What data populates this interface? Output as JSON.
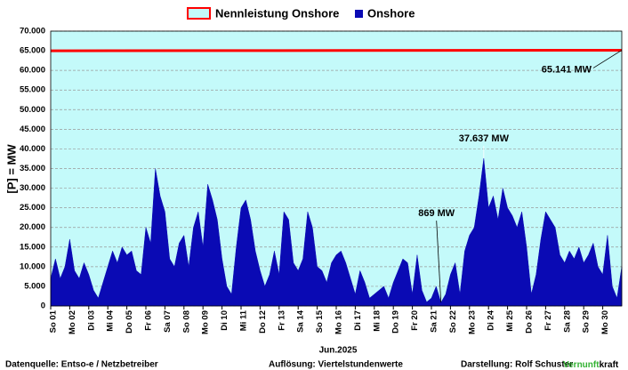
{
  "chart_data": {
    "type": "area",
    "y_label": "[P] = MW",
    "x_label": "Jun.2025",
    "xlim": [
      0,
      30
    ],
    "xticks": [
      {
        "value": 0,
        "label": "So 01"
      },
      {
        "value": 1,
        "label": "Mo 02"
      },
      {
        "value": 2,
        "label": "Di 03"
      },
      {
        "value": 3,
        "label": "Mi 04"
      },
      {
        "value": 4,
        "label": "Do 05"
      },
      {
        "value": 5,
        "label": "Fr 06"
      },
      {
        "value": 6,
        "label": "Sa 07"
      },
      {
        "value": 7,
        "label": "So 08"
      },
      {
        "value": 8,
        "label": "Mo 09"
      },
      {
        "value": 9,
        "label": "Di 10"
      },
      {
        "value": 10,
        "label": "Mi 11"
      },
      {
        "value": 11,
        "label": "Do 12"
      },
      {
        "value": 12,
        "label": "Fr 13"
      },
      {
        "value": 13,
        "label": "Sa 14"
      },
      {
        "value": 14,
        "label": "So 15"
      },
      {
        "value": 15,
        "label": "Mo 16"
      },
      {
        "value": 16,
        "label": "Di 17"
      },
      {
        "value": 17,
        "label": "Mi 18"
      },
      {
        "value": 18,
        "label": "Do 19"
      },
      {
        "value": 19,
        "label": "Fr 20"
      },
      {
        "value": 20,
        "label": "Sa 21"
      },
      {
        "value": 21,
        "label": "So 22"
      },
      {
        "value": 22,
        "label": "Mo 23"
      },
      {
        "value": 23,
        "label": "Di 24"
      },
      {
        "value": 24,
        "label": "Mi 25"
      },
      {
        "value": 25,
        "label": "Do 26"
      },
      {
        "value": 26,
        "label": "Fr 27"
      },
      {
        "value": 27,
        "label": "Sa 28"
      },
      {
        "value": 28,
        "label": "So 29"
      },
      {
        "value": 29,
        "label": "Mo 30"
      }
    ],
    "ylim": [
      0,
      70000
    ],
    "yticks": [
      0,
      {
        "value": 5000,
        "label": "5.000"
      },
      {
        "value": 10000,
        "label": "10.000"
      },
      {
        "value": 15000,
        "label": "15.000"
      },
      {
        "value": 20000,
        "label": "20.000"
      },
      {
        "value": 25000,
        "label": "25.000"
      },
      {
        "value": 30000,
        "label": "30.000"
      },
      {
        "value": 35000,
        "label": "35.000"
      },
      {
        "value": 40000,
        "label": "40.000"
      },
      {
        "value": 45000,
        "label": "45.000"
      },
      {
        "value": 50000,
        "label": "50.000"
      },
      {
        "value": 55000,
        "label": "55.000"
      },
      {
        "value": 60000,
        "label": "60.000"
      },
      {
        "value": 65000,
        "label": "65.000"
      },
      {
        "value": 70000,
        "label": "70.000"
      }
    ],
    "grid": true,
    "background": "#c4fafa",
    "x": [
      0,
      0.25,
      0.5,
      0.75,
      1,
      1.25,
      1.5,
      1.75,
      2,
      2.25,
      2.5,
      2.75,
      3,
      3.25,
      3.5,
      3.75,
      4,
      4.25,
      4.5,
      4.75,
      5,
      5.25,
      5.5,
      5.75,
      6,
      6.25,
      6.5,
      6.75,
      7,
      7.25,
      7.5,
      7.75,
      8,
      8.25,
      8.5,
      8.75,
      9,
      9.25,
      9.5,
      9.75,
      10,
      10.25,
      10.5,
      10.75,
      11,
      11.25,
      11.5,
      11.75,
      12,
      12.25,
      12.5,
      12.75,
      13,
      13.25,
      13.5,
      13.75,
      14,
      14.25,
      14.5,
      14.75,
      15,
      15.25,
      15.5,
      15.75,
      16,
      16.25,
      16.5,
      16.75,
      17,
      17.25,
      17.5,
      17.75,
      18,
      18.25,
      18.5,
      18.75,
      19,
      19.25,
      19.5,
      19.75,
      20,
      20.25,
      20.5,
      20.75,
      21,
      21.25,
      21.5,
      21.75,
      22,
      22.25,
      22.5,
      22.75,
      23,
      23.25,
      23.5,
      23.75,
      24,
      24.25,
      24.5,
      24.75,
      25,
      25.25,
      25.5,
      25.75,
      26,
      26.25,
      26.5,
      26.75,
      27,
      27.25,
      27.5,
      27.75,
      28,
      28.25,
      28.5,
      28.75,
      29,
      29.25,
      29.5,
      29.75,
      30
    ],
    "series": [
      {
        "name": "Nennleistung Onshore",
        "kind": "line",
        "color": "#ff0000",
        "fill": "#c4fafa",
        "x": [
          0,
          12,
          30
        ],
        "values": [
          65000,
          65050,
          65141
        ]
      },
      {
        "name": "Onshore",
        "kind": "area",
        "color": "#0a0ab4",
        "values": [
          7000,
          12000,
          7000,
          10000,
          17000,
          9000,
          7000,
          11000,
          8000,
          4000,
          2000,
          6000,
          10000,
          14000,
          11000,
          15000,
          13000,
          14000,
          9000,
          8000,
          20000,
          16000,
          35000,
          28000,
          24000,
          12000,
          10000,
          16000,
          18000,
          10000,
          20000,
          24000,
          15000,
          31000,
          27000,
          22000,
          12000,
          5000,
          3000,
          15000,
          25000,
          27000,
          22000,
          14000,
          9000,
          5000,
          8000,
          14000,
          8000,
          24000,
          22000,
          11000,
          9000,
          12000,
          24000,
          20000,
          10000,
          9000,
          6000,
          11000,
          13000,
          14000,
          11000,
          7000,
          3000,
          9000,
          6000,
          2000,
          3000,
          4000,
          5000,
          2000,
          6000,
          9000,
          12000,
          11000,
          3000,
          13000,
          4000,
          1000,
          2000,
          5000,
          869,
          3000,
          8000,
          11000,
          3000,
          14000,
          18000,
          20000,
          28000,
          37637,
          25000,
          28000,
          22000,
          30000,
          25000,
          23000,
          20000,
          24000,
          15000,
          3000,
          8000,
          17000,
          24000,
          22000,
          20000,
          13000,
          11000,
          14000,
          12000,
          15000,
          11000,
          13000,
          16000,
          10000,
          8000,
          18000,
          5000,
          2000,
          10000
        ]
      }
    ],
    "annotations": [
      {
        "text": "65.141 MW",
        "x": 30,
        "y": 65141
      },
      {
        "text": "37.637 MW",
        "x": 22.75,
        "y": 37637
      },
      {
        "text": "869 MW",
        "x": 20.5,
        "y": 869
      }
    ],
    "footer": {
      "source": "Datenquelle:  Entso-e  / Netzbetreiber",
      "resolution": "Auflösung: Viertelstundenwerte",
      "author": "Darstellung:  Rolf Schuster",
      "brand_a": "Vernunft",
      "brand_b": "kraft"
    }
  }
}
